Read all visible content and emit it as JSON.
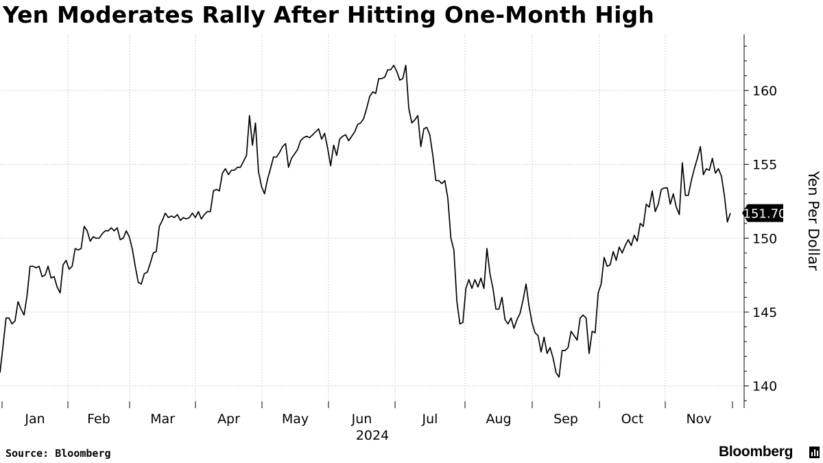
{
  "title": "Yen Moderates Rally After Hitting One-Month High",
  "source": "Source: Bloomberg",
  "brand": "Bloomberg",
  "brand_icon": "bloomberg-terminal-icon",
  "chart_data": {
    "type": "line",
    "xlabel": "2024",
    "ylabel": "Yen Per Dollar",
    "ylim": [
      138.5,
      163.8
    ],
    "y_ticks": [
      140,
      145,
      150,
      155,
      160
    ],
    "x_tick_labels": [
      "Jan",
      "Feb",
      "Mar",
      "Apr",
      "May",
      "Jun",
      "Jul",
      "Aug",
      "Sep",
      "Oct",
      "Nov"
    ],
    "year_label": "2024",
    "grid": "vertical",
    "last_value": 151.7,
    "last_value_label": "151.70",
    "line_color": "#000000",
    "series": [
      {
        "values": [
          140.9,
          142.7,
          144.6,
          144.6,
          144.2,
          144.4,
          145.7,
          145.2,
          144.8,
          146.1,
          148.1,
          148.1,
          148.0,
          148.1,
          147.4,
          147.5,
          148.1,
          147.3,
          147.4,
          146.7,
          146.3,
          148.2,
          148.5,
          147.9,
          148.1,
          149.3,
          149.2,
          149.3,
          150.8,
          150.5,
          149.8,
          150.1,
          150.0,
          150.0,
          150.3,
          150.5,
          150.5,
          150.7,
          150.5,
          150.7,
          149.9,
          150.0,
          150.5,
          150.1,
          149.3,
          148.1,
          147.0,
          146.9,
          147.6,
          147.7,
          148.3,
          149.0,
          149.1,
          150.8,
          151.2,
          151.7,
          151.4,
          151.5,
          151.4,
          151.6,
          151.2,
          151.4,
          151.3,
          151.4,
          151.7,
          151.4,
          151.8,
          151.3,
          151.6,
          151.8,
          151.8,
          153.2,
          153.3,
          153.2,
          154.4,
          154.7,
          154.3,
          154.6,
          154.6,
          154.8,
          154.8,
          155.2,
          155.6,
          158.3,
          156.3,
          157.8,
          154.5,
          153.5,
          153.0,
          154.0,
          154.7,
          155.5,
          155.5,
          155.8,
          156.2,
          156.4,
          154.8,
          155.4,
          155.7,
          156.0,
          156.6,
          156.8,
          156.9,
          156.8,
          157.0,
          157.2,
          157.4,
          156.7,
          157.1,
          156.1,
          154.9,
          156.3,
          155.6,
          156.7,
          156.9,
          157.0,
          156.6,
          156.9,
          157.2,
          157.7,
          157.8,
          158.1,
          158.8,
          159.6,
          159.9,
          159.8,
          160.8,
          160.8,
          160.9,
          161.4,
          161.4,
          161.7,
          161.3,
          160.7,
          160.8,
          161.7,
          158.8,
          157.8,
          158.0,
          158.3,
          156.2,
          157.4,
          157.5,
          157.0,
          155.6,
          153.9,
          153.9,
          153.7,
          153.9,
          152.7,
          150.0,
          149.2,
          145.7,
          144.2,
          144.3,
          146.6,
          147.2,
          146.6,
          147.2,
          146.7,
          147.3,
          146.6,
          149.3,
          147.6,
          146.6,
          145.2,
          145.2,
          146.0,
          144.5,
          144.2,
          144.6,
          143.9,
          144.5,
          144.9,
          145.8,
          146.9,
          145.4,
          144.3,
          143.6,
          143.4,
          142.3,
          143.3,
          142.2,
          142.6,
          141.9,
          140.9,
          140.6,
          142.4,
          142.4,
          142.6,
          143.7,
          143.4,
          143.1,
          144.6,
          144.8,
          144.6,
          142.2,
          143.7,
          143.6,
          146.3,
          146.9,
          148.7,
          148.1,
          148.2,
          149.1,
          148.5,
          149.4,
          149.0,
          149.5,
          149.9,
          149.5,
          150.2,
          149.8,
          151.0,
          150.8,
          152.3,
          152.1,
          153.2,
          151.8,
          152.3,
          153.3,
          153.4,
          153.4,
          152.3,
          153.0,
          152.1,
          151.6,
          155.1,
          152.9,
          152.9,
          153.9,
          154.7,
          155.4,
          156.2,
          154.3,
          154.7,
          154.6,
          155.4,
          154.4,
          154.7,
          154.2,
          152.9,
          151.1,
          151.7
        ]
      }
    ]
  }
}
